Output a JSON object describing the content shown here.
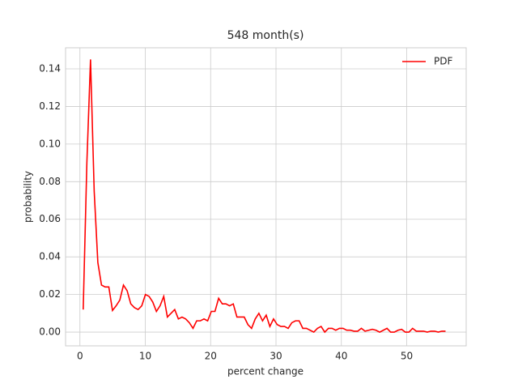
{
  "chart_data": {
    "type": "line",
    "title": "548 month(s)",
    "x_label": "percent change",
    "y_label": "probability",
    "x": [
      0.5,
      1.06,
      1.62,
      2.18,
      2.74,
      3.3,
      3.86,
      4.42,
      4.98,
      5.54,
      6.1,
      6.66,
      7.22,
      7.78,
      8.34,
      8.9,
      9.46,
      10.02,
      10.58,
      11.14,
      11.7,
      12.26,
      12.82,
      13.38,
      13.94,
      14.5,
      15.06,
      15.62,
      16.18,
      16.74,
      17.3,
      17.86,
      18.42,
      18.98,
      19.54,
      20.1,
      20.66,
      21.22,
      21.78,
      22.34,
      22.9,
      23.46,
      24.02,
      24.58,
      25.14,
      25.7,
      26.26,
      26.82,
      27.38,
      27.94,
      28.5,
      29.06,
      29.62,
      30.18,
      30.74,
      31.3,
      31.86,
      32.42,
      32.98,
      33.54,
      34.1,
      34.66,
      35.22,
      35.78,
      36.34,
      36.9,
      37.46,
      38.02,
      38.58,
      39.14,
      39.7,
      40.26,
      40.82,
      41.38,
      41.94,
      42.5,
      43.06,
      43.62,
      44.18,
      44.74,
      45.3,
      45.86,
      46.42,
      46.98,
      47.54,
      48.1,
      48.66,
      49.22,
      49.78,
      50.34,
      50.9,
      51.46,
      52.02,
      52.58,
      53.14,
      53.7,
      54.26,
      54.82,
      55.38,
      55.94
    ],
    "series": [
      {
        "name": "PDF",
        "color": "#ff0000",
        "values": [
          0.012,
          0.09,
          0.145,
          0.075,
          0.037,
          0.025,
          0.024,
          0.024,
          0.0115,
          0.014,
          0.017,
          0.025,
          0.022,
          0.015,
          0.013,
          0.012,
          0.014,
          0.02,
          0.019,
          0.016,
          0.011,
          0.014,
          0.019,
          0.008,
          0.01,
          0.012,
          0.007,
          0.008,
          0.007,
          0.005,
          0.002,
          0.006,
          0.006,
          0.007,
          0.006,
          0.011,
          0.011,
          0.018,
          0.015,
          0.015,
          0.014,
          0.015,
          0.008,
          0.008,
          0.008,
          0.004,
          0.002,
          0.007,
          0.01,
          0.006,
          0.009,
          0.003,
          0.007,
          0.004,
          0.003,
          0.003,
          0.002,
          0.005,
          0.006,
          0.006,
          0.002,
          0.002,
          0.001,
          0,
          0.002,
          0.003,
          0,
          0.002,
          0.002,
          0.001,
          0.002,
          0.002,
          0.001,
          0.001,
          0.0005,
          0.0005,
          0.002,
          0.0005,
          0.001,
          0.0015,
          0.001,
          0,
          0.001,
          0.002,
          0,
          0,
          0.001,
          0.0015,
          0,
          0,
          0.002,
          0.0005,
          0.0005,
          0.0005,
          0,
          0.0005,
          0.0005,
          0,
          0.0005,
          0.0005
        ]
      }
    ],
    "xlim": [
      -2.2,
      59.1
    ],
    "ylim": [
      -0.0073,
      0.1512
    ],
    "xticks": [
      0,
      10,
      20,
      30,
      40,
      50
    ],
    "yticks": [
      {
        "value": 0,
        "label": "0.00"
      },
      {
        "value": 0.02,
        "label": "0.02"
      },
      {
        "value": 0.04,
        "label": "0.04"
      },
      {
        "value": 0.06,
        "label": "0.06"
      },
      {
        "value": 0.08,
        "label": "0.08"
      },
      {
        "value": 0.1,
        "label": "0.10"
      },
      {
        "value": 0.12,
        "label": "0.12"
      },
      {
        "value": 0.14,
        "label": "0.14"
      }
    ],
    "grid": true,
    "legend": "upper right"
  }
}
